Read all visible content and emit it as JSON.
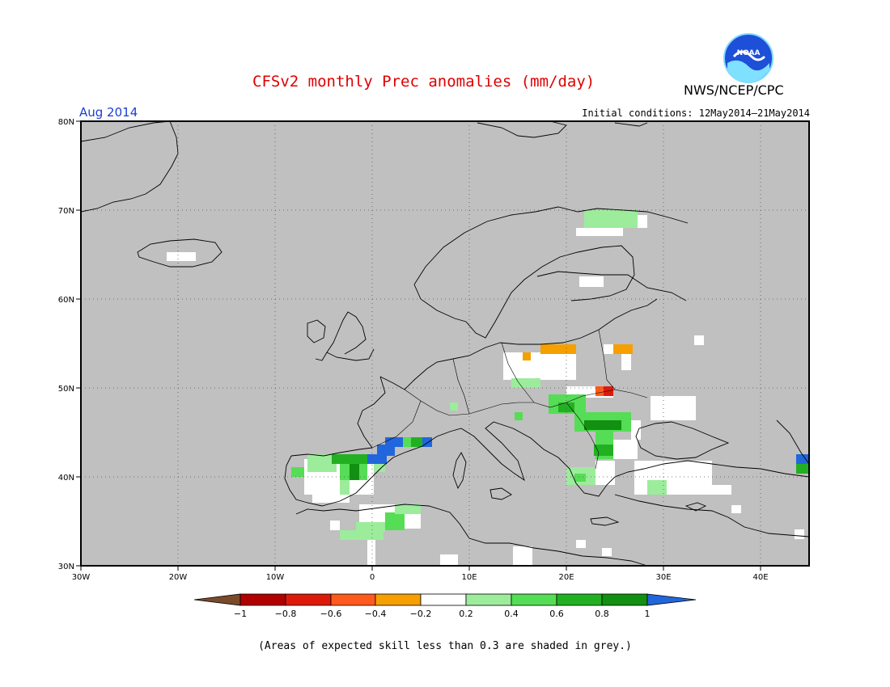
{
  "header": {
    "title": "CFSv2 monthly Prec anomalies (mm/day)",
    "month": "Aug 2014",
    "initial_conditions": "Initial conditions: 12May2014–21May2014",
    "agency": "NWS/NCEP/CPC",
    "logo_text": "NOAA"
  },
  "axes": {
    "lon_ticks": [
      "30W",
      "20W",
      "10W",
      "0",
      "10E",
      "20E",
      "30E",
      "40E"
    ],
    "lat_ticks": [
      "80N",
      "70N",
      "60N",
      "50N",
      "40N",
      "30N"
    ],
    "lon_range": [
      -30,
      45
    ],
    "lat_range": [
      30,
      80
    ]
  },
  "colorbar": {
    "labels": [
      "−1",
      "−0.8",
      "−0.6",
      "−0.4",
      "−0.2",
      "0.2",
      "0.4",
      "0.6",
      "0.8",
      "1"
    ],
    "colors": [
      "#7a4a2a",
      "#b00000",
      "#dd1a0a",
      "#ff5a1e",
      "#f5a000",
      "#ffffff",
      "#9cec9c",
      "#55dd55",
      "#22b022",
      "#119011",
      "#2266dd"
    ]
  },
  "colors": {
    "grey_mask": "#c0c0c0",
    "white": "#ffffff",
    "light_green": "#9cec9c",
    "green": "#55dd55",
    "mid_green": "#22b022",
    "dark_green": "#119011",
    "blue": "#2266dd",
    "orange": "#f5a000",
    "red_orange": "#ff5a1e",
    "red": "#dd1a0a"
  },
  "footnote": "(Areas of expected skill less than 0.3 are shaded in grey.)"
}
